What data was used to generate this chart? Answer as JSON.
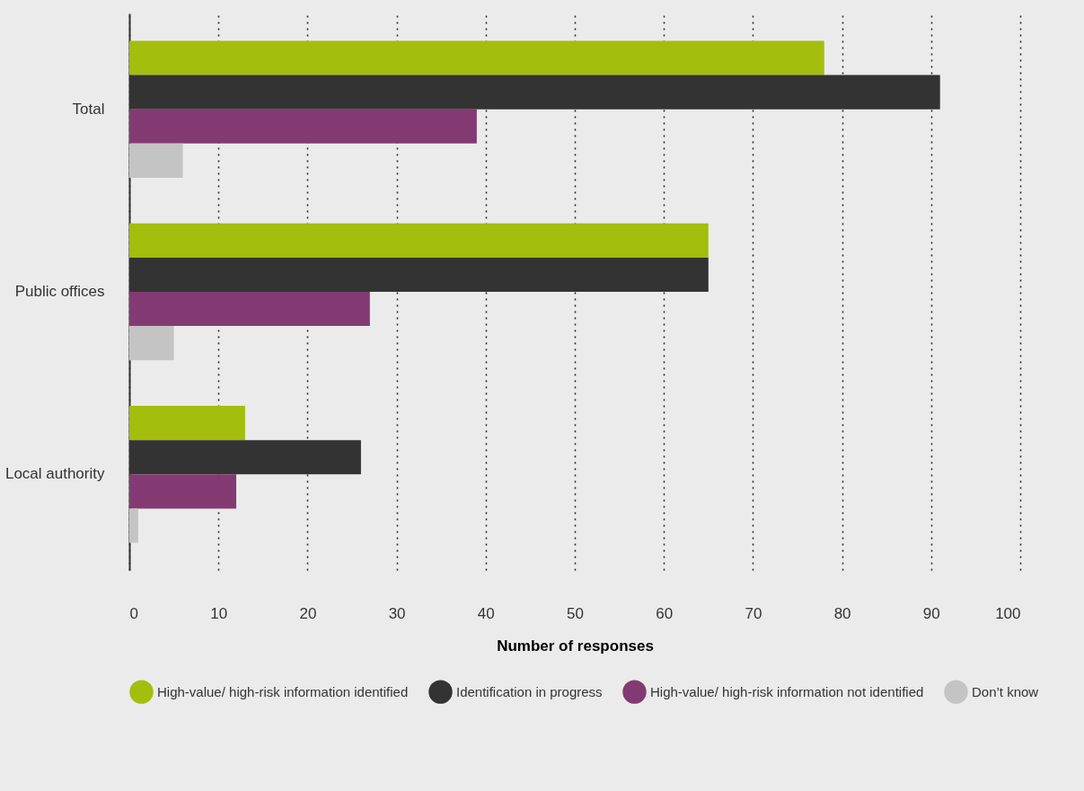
{
  "chart_data": {
    "type": "bar",
    "orientation": "horizontal",
    "categories": [
      "Total",
      "Public offices",
      "Local authority"
    ],
    "series": [
      {
        "name": "High-value/ high-risk information identified",
        "color": "#a3be0c",
        "values": [
          78,
          65,
          13
        ]
      },
      {
        "name": "Identification in progress",
        "color": "#333333",
        "values": [
          91,
          65,
          26
        ]
      },
      {
        "name": "High-value/ high-risk information not identified",
        "color": "#833a72",
        "values": [
          39,
          27,
          12
        ]
      },
      {
        "name": "Don’t know",
        "color": "#c4c4c4",
        "values": [
          6,
          5,
          1
        ]
      }
    ],
    "xlabel": "Number of responses",
    "xlim": [
      0,
      100
    ],
    "xticks": [
      0,
      10,
      20,
      30,
      40,
      50,
      60,
      70,
      80,
      90,
      100
    ],
    "grid": "x",
    "legend": "bottom"
  }
}
